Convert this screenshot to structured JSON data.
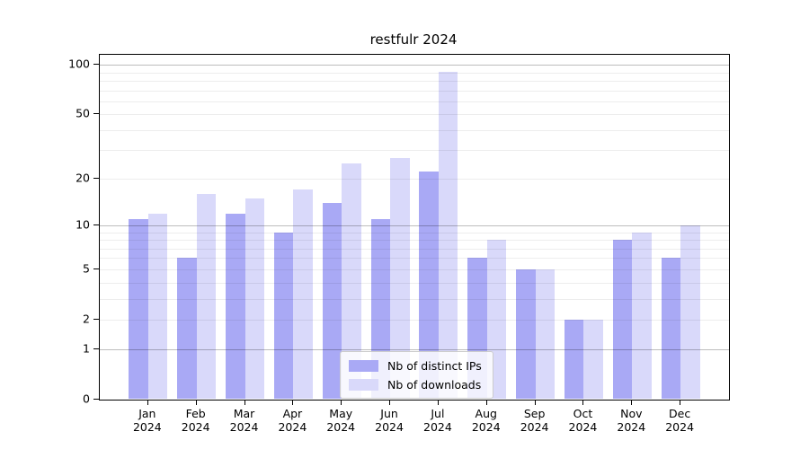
{
  "title": "restfulr 2024",
  "legend": {
    "items": [
      {
        "label": "Nb of distinct IPs",
        "color": "#a9a9f5"
      },
      {
        "label": "Nb of downloads",
        "color": "#d9d9fa"
      }
    ]
  },
  "colors": {
    "bar_distinct_ips": "#a9a9f5",
    "bar_downloads": "#d9d9fa",
    "axis": "#000000",
    "grid_major": "#bdbdbd",
    "grid_minor": "#ededed",
    "background": "#ffffff"
  },
  "chart_data": {
    "type": "bar",
    "title": "restfulr 2024",
    "xlabel": "",
    "ylabel": "",
    "scale": "log1p",
    "categories": [
      "Jan",
      "Feb",
      "Mar",
      "Apr",
      "May",
      "Jun",
      "Jul",
      "Aug",
      "Sep",
      "Oct",
      "Nov",
      "Dec"
    ],
    "category_year": "2024",
    "series": [
      {
        "name": "Nb of distinct IPs",
        "color": "#a9a9f5",
        "values": [
          11,
          6,
          12,
          9,
          14,
          11,
          22,
          6,
          5,
          2,
          8,
          6
        ]
      },
      {
        "name": "Nb of downloads",
        "color": "#d9d9fa",
        "values": [
          12,
          16,
          15,
          17,
          25,
          27,
          91,
          8,
          5,
          2,
          9,
          10
        ]
      }
    ],
    "y_ticks": [
      0,
      1,
      2,
      5,
      10,
      20,
      50,
      100
    ],
    "grid_major": [
      1,
      10,
      100
    ],
    "grid_minor": [
      2,
      3,
      4,
      5,
      6,
      7,
      8,
      9,
      20,
      30,
      40,
      50,
      60,
      70,
      80,
      90
    ],
    "ylim": [
      0,
      114.9
    ],
    "legend_position": "lower-center",
    "grid": "on"
  }
}
